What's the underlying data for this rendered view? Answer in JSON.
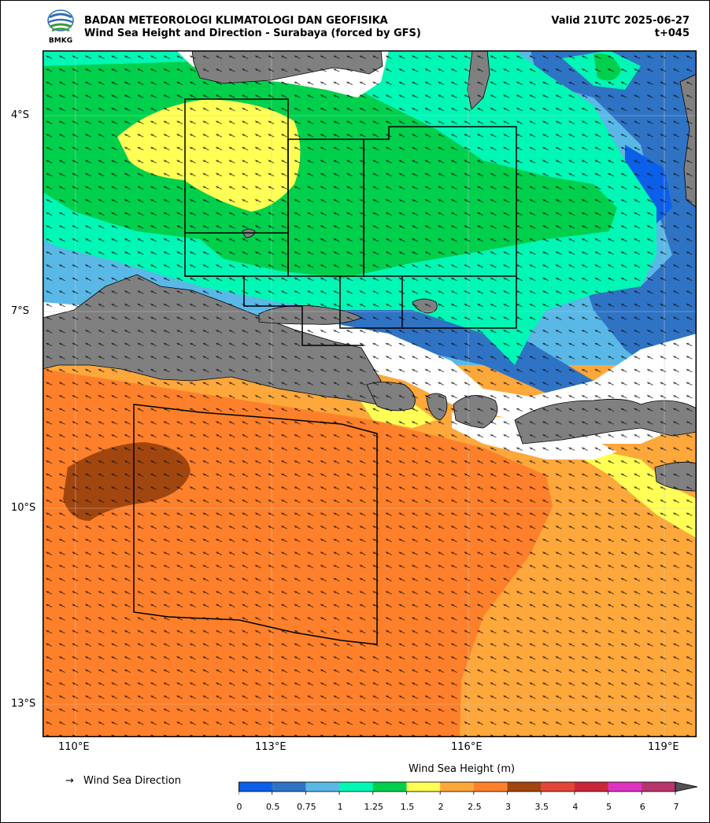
{
  "header": {
    "org_name": "BADAN METEOROLOGI KLIMATOLOGI DAN GEOFISIKA",
    "product_title": "Wind Sea Height and Direction - Surabaya (forced by GFS)",
    "valid_time": "Valid 21UTC 2025-06-27",
    "forecast_step": "t+045",
    "logo_text": "BMKG"
  },
  "map": {
    "lat_labels": [
      "4°S",
      "7°S",
      "10°S",
      "13°S"
    ],
    "lon_labels": [
      "110°E",
      "113°E",
      "116°E",
      "119°E"
    ],
    "extent": {
      "lon_min": 109.5,
      "lon_max": 119.5,
      "lat_min": -13.5,
      "lat_max": -3.0
    },
    "land_color": "#808080",
    "nodata_color": "#ffffff",
    "arrow_direction": "west-northwest"
  },
  "legend": {
    "direction_symbol": "→",
    "direction_label": "Wind Sea Direction",
    "colorbar_title": "Wind Sea Height (m)",
    "colorbar_ticks": [
      "0",
      "0.5",
      "0.75",
      "1",
      "1.25",
      "1.5",
      "2",
      "2.5",
      "3",
      "3.5",
      "4",
      "5",
      "6",
      "7"
    ],
    "colorbar_colors": [
      "#0c5fe8",
      "#2f73c4",
      "#5ab8e6",
      "#00f7b5",
      "#00d04c",
      "#ffff55",
      "#fea73a",
      "#fe802a",
      "#a2460f",
      "#e24639",
      "#c9283a",
      "#dd33c0",
      "#b7356d",
      "#525252"
    ]
  }
}
